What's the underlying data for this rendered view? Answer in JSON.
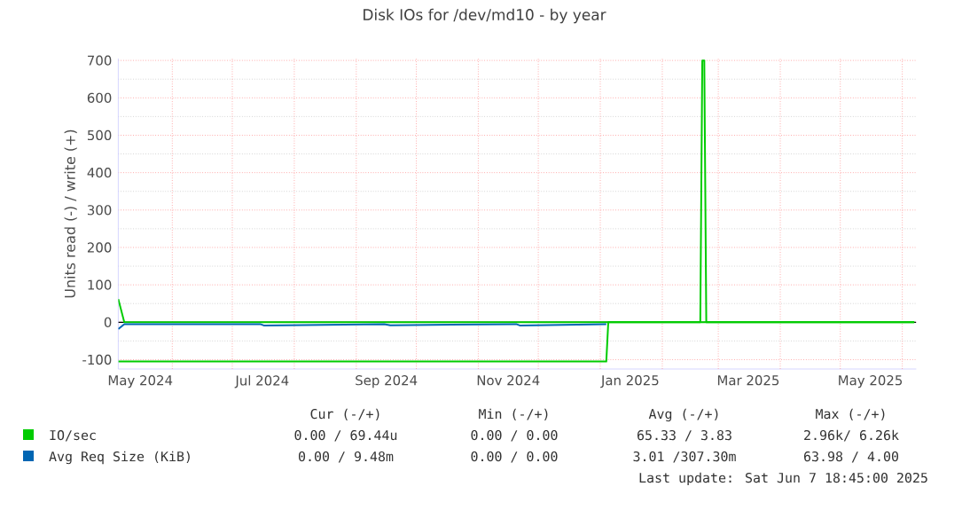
{
  "chart_data": {
    "type": "line",
    "title": "Disk IOs for /dev/md10 - by year",
    "ylabel": "Units read (-) / write (+)",
    "xlim": [
      "2024-05-05",
      "2025-06-08"
    ],
    "xticks": [
      {
        "value": "2024-05-16",
        "label": "May 2024"
      },
      {
        "value": "2024-07-16",
        "label": "Jul 2024"
      },
      {
        "value": "2024-09-16",
        "label": "Sep 2024"
      },
      {
        "value": "2024-11-16",
        "label": "Nov 2024"
      },
      {
        "value": "2025-01-16",
        "label": "Jan 2025"
      },
      {
        "value": "2025-03-16",
        "label": "Mar 2025"
      },
      {
        "value": "2025-05-16",
        "label": "May 2025"
      },
      {
        "value": "2024-06-01",
        "label": null
      },
      {
        "value": "2024-07-01",
        "label": null
      },
      {
        "value": "2024-08-01",
        "label": null
      },
      {
        "value": "2024-09-01",
        "label": null
      },
      {
        "value": "2024-10-01",
        "label": null
      },
      {
        "value": "2024-11-01",
        "label": null
      },
      {
        "value": "2024-12-01",
        "label": null
      },
      {
        "value": "2025-01-01",
        "label": null
      },
      {
        "value": "2025-02-01",
        "label": null
      },
      {
        "value": "2025-03-01",
        "label": null
      },
      {
        "value": "2025-04-01",
        "label": null
      },
      {
        "value": "2025-05-01",
        "label": null
      },
      {
        "value": "2025-06-01",
        "label": null
      }
    ],
    "ylim": [
      -125,
      705
    ],
    "yticks": [
      -100,
      0,
      100,
      200,
      300,
      400,
      500,
      600,
      700
    ],
    "grid": true,
    "legend": "bottom",
    "marker": "none",
    "line_style": "solid",
    "ref_lines": [
      {
        "axis": "y",
        "value": 0,
        "color": "#000000"
      }
    ],
    "series": [
      {
        "name": "IO/sec",
        "color": "#00cc00",
        "x": [
          "2024-05-05",
          "2024-05-08",
          "2025-02-20",
          "2025-02-21",
          "2025-02-22",
          "2025-02-23",
          "2025-06-07"
        ],
        "values": [
          62,
          0,
          0,
          700,
          700,
          0,
          0
        ]
      },
      {
        "color": "#00cc00",
        "x": [
          "2024-05-05",
          "2025-01-04",
          "2025-01-05",
          "2025-06-07"
        ],
        "values": [
          -105,
          -105,
          0,
          0
        ]
      },
      {
        "name": "Avg Req Size (KiB)",
        "color": "#0066b3",
        "x": [
          "2024-05-05",
          "2024-05-08",
          "2024-07-15",
          "2024-07-17",
          "2024-09-15",
          "2024-09-18",
          "2024-11-20",
          "2024-11-22",
          "2025-01-04"
        ],
        "values": [
          -18,
          -5,
          -5,
          -9,
          -5,
          -8,
          -5,
          -9,
          -5
        ]
      }
    ],
    "annotations": [
      "Cur (-/+)",
      "Min (-/+)",
      "Avg (-/+)",
      "Max (-/+)",
      "0.00 / 69.44u",
      "0.00 / 0.00",
      "65.33 / 3.83",
      "2.96k/ 6.26k",
      "0.00 / 9.48m",
      "0.00 / 0.00",
      "3.01 /307.30m",
      "63.98 / 4.00",
      "Last update: Sat Jun 7 18:45:00 2025"
    ]
  }
}
